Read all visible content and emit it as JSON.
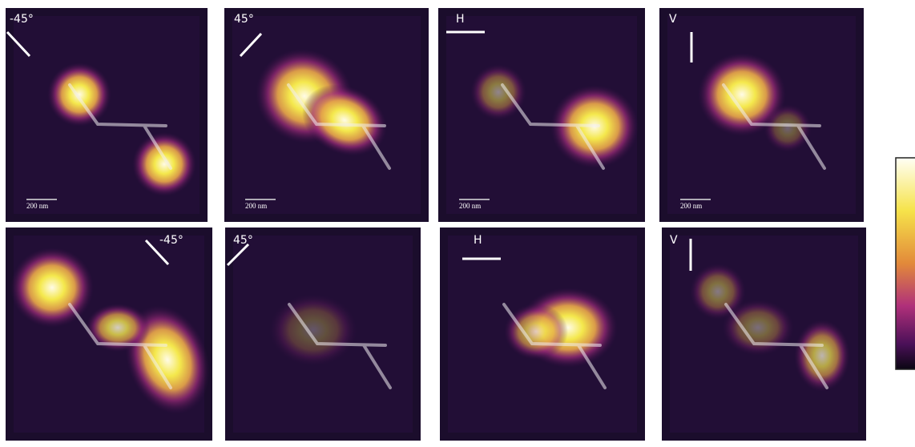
{
  "panels": [
    {
      "label": "-45°",
      "scale_bar": "200 nm"
    },
    {
      "label": "45°",
      "scale_bar": "200 nm"
    },
    {
      "label": "H",
      "scale_bar": "200 nm"
    },
    {
      "label": "V",
      "scale_bar": "200 nm"
    },
    {
      "label": "-45°"
    },
    {
      "label": "45°"
    },
    {
      "label": "H"
    },
    {
      "label": "V"
    }
  ]
}
